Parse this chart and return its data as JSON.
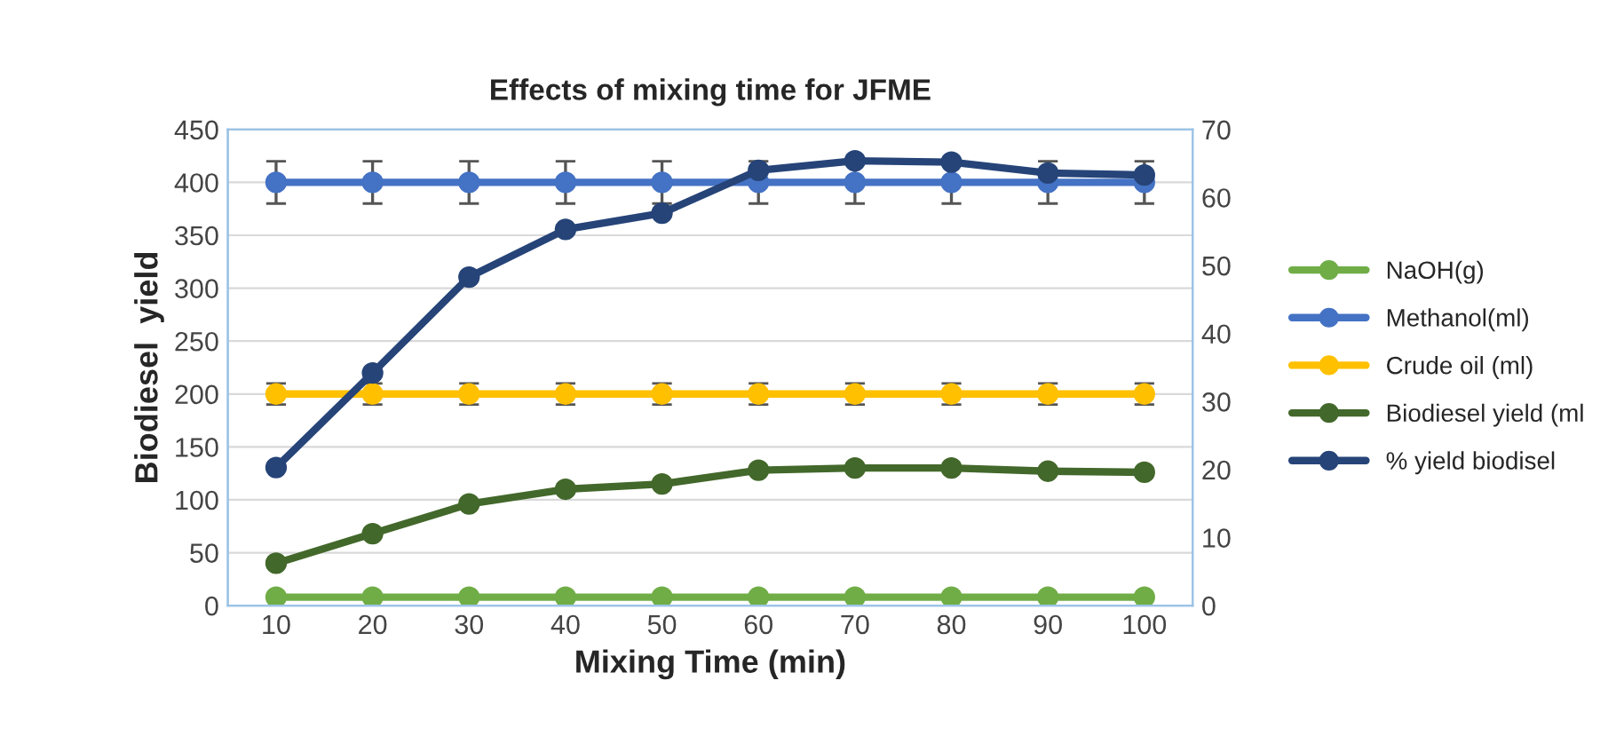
{
  "chart_data": {
    "type": "line",
    "title": "Effects of mixing time for JFME",
    "xlabel": "Mixing Time (min)",
    "ylabel": "Biodiesel  yield",
    "categories": [
      "10",
      "20",
      "30",
      "40",
      "50",
      "60",
      "70",
      "80",
      "90",
      "100"
    ],
    "series": [
      {
        "name": "NaOH(g)",
        "color": "#70ad47",
        "values": [
          8,
          8,
          8,
          8,
          8,
          8,
          8,
          8,
          8,
          8
        ]
      },
      {
        "name": "Methanol(ml)",
        "color": "#4472c4",
        "values": [
          400,
          400,
          400,
          400,
          400,
          400,
          400,
          400,
          400,
          400
        ],
        "errors": [
          20,
          20,
          20,
          20,
          20,
          20,
          20,
          20,
          20,
          20
        ]
      },
      {
        "name": "Crude oil (ml)",
        "color": "#ffc000",
        "values": [
          200,
          200,
          200,
          200,
          200,
          200,
          200,
          200,
          200,
          200
        ],
        "errors": [
          10,
          10,
          10,
          10,
          10,
          10,
          10,
          10,
          10,
          10
        ]
      },
      {
        "name": "Biodiesel yield (ml",
        "color": "#43682b",
        "values": [
          40,
          68,
          96,
          110,
          115,
          128,
          130,
          130,
          127,
          126
        ]
      },
      {
        "name": "% yield biodisel",
        "color": "#264478",
        "axis": "y2",
        "values": [
          20.3,
          34.2,
          48.3,
          55.3,
          57.7,
          64,
          65.4,
          65.2,
          63.6,
          63.3
        ]
      }
    ],
    "ylim": [
      0,
      450
    ],
    "yticks": [
      0,
      50,
      100,
      150,
      200,
      250,
      300,
      350,
      400,
      450
    ],
    "y2lim": [
      0,
      70
    ],
    "y2ticks": [
      0,
      10,
      20,
      30,
      40,
      50,
      60,
      70
    ],
    "grid": "y",
    "legend": "right",
    "marker": "circle",
    "line_style": "solid"
  }
}
